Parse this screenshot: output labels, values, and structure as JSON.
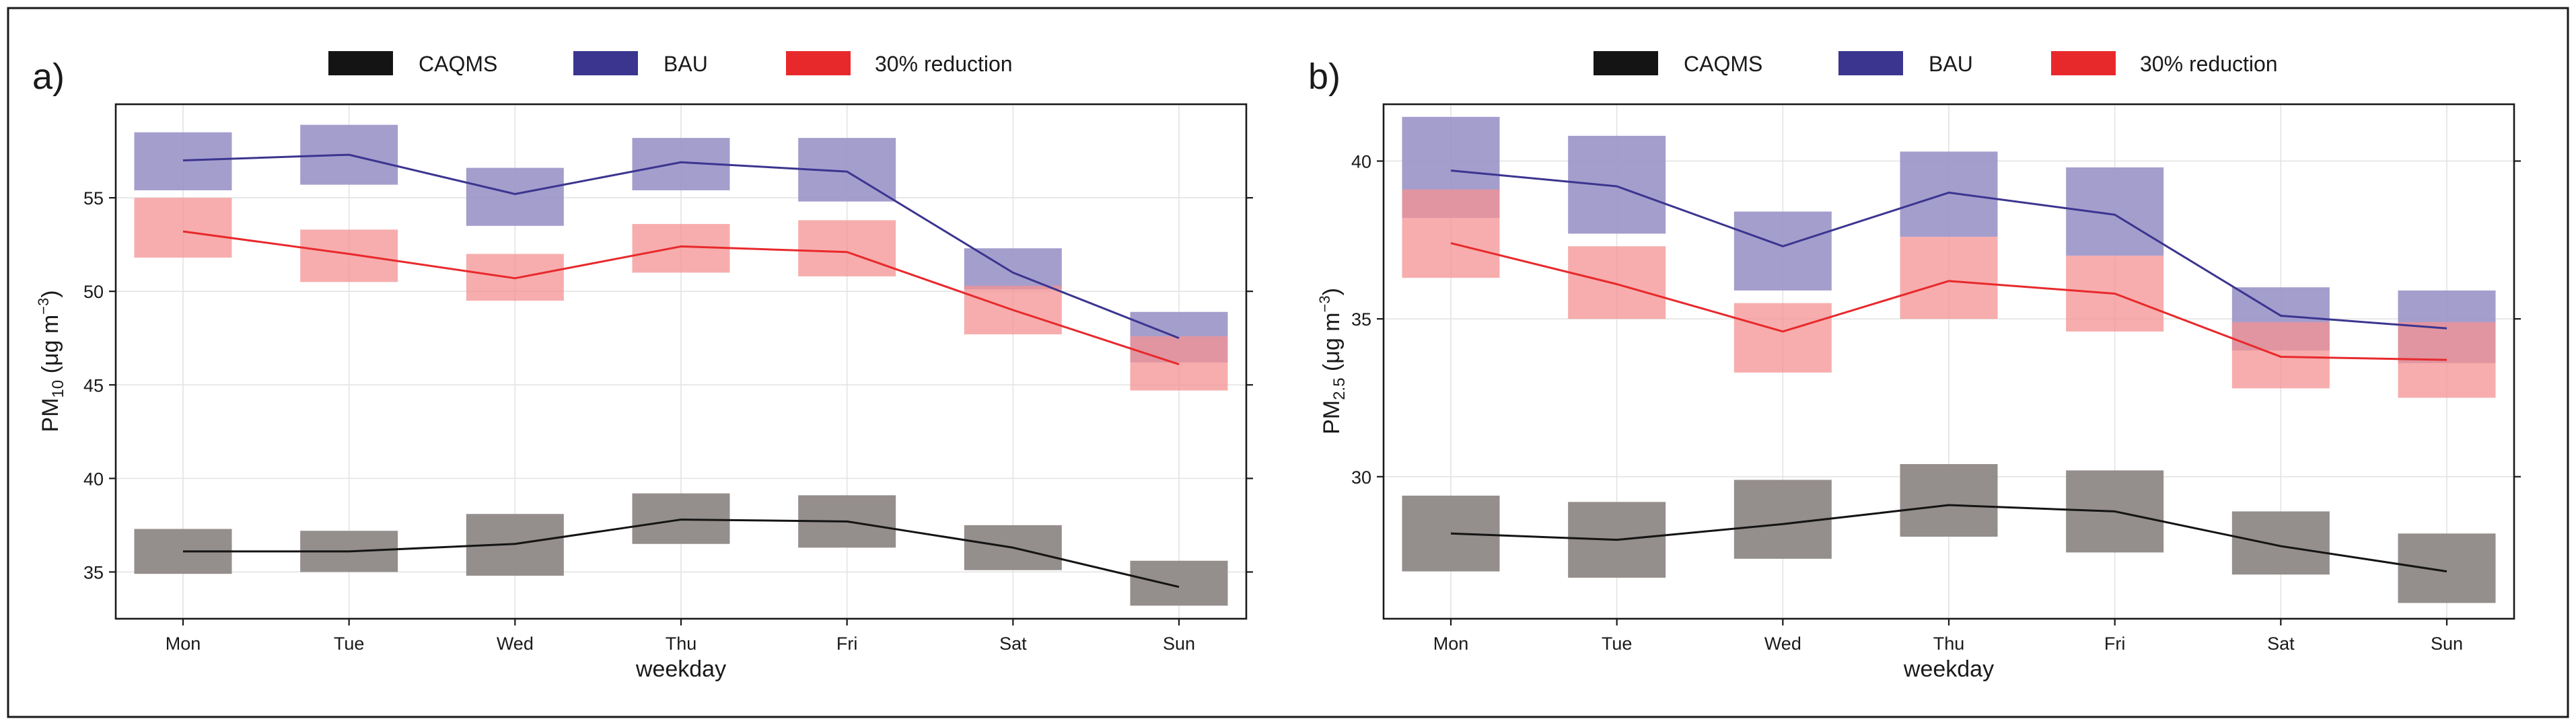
{
  "colors": {
    "CAQMS": "#141414",
    "BAU": "#3b3590",
    "30% reduction": "#e8292c",
    "CAQMS_box": "#8e8886",
    "BAU_box": "#9a93c8",
    "reduction_box": "#f49191"
  },
  "chart_data": [
    {
      "type": "line",
      "panel_label": "a)",
      "xlabel": "weekday",
      "ylabel_main": "PM",
      "ylabel_sub": "10",
      "ylabel_units_prefix": "(μg m",
      "ylabel_units_sup": "−3",
      "ylabel_units_suffix": ")",
      "ylim": [
        32.5,
        60.0
      ],
      "yticks": [
        35,
        40,
        45,
        50,
        55
      ],
      "ytick_labels": [
        "35",
        "40",
        "45",
        "50",
        "55"
      ],
      "categories": [
        "Mon",
        "Tue",
        "Wed",
        "Thu",
        "Fri",
        "Sat",
        "Sun"
      ],
      "legend": [
        "CAQMS",
        "BAU",
        "30% reduction"
      ],
      "series": [
        {
          "name": "CAQMS",
          "values": [
            36.1,
            36.1,
            36.5,
            37.8,
            37.7,
            36.3,
            34.2
          ],
          "low": [
            34.9,
            35.0,
            34.8,
            36.5,
            36.3,
            35.1,
            33.2
          ],
          "high": [
            37.3,
            37.2,
            38.1,
            39.2,
            39.1,
            37.5,
            35.6
          ]
        },
        {
          "name": "BAU",
          "values": [
            57.0,
            57.3,
            55.2,
            56.9,
            56.4,
            51.0,
            47.5
          ],
          "low": [
            55.4,
            55.7,
            53.5,
            55.4,
            54.8,
            50.1,
            46.2
          ],
          "high": [
            58.5,
            58.9,
            56.6,
            58.2,
            58.2,
            52.3,
            48.9
          ]
        },
        {
          "name": "30% reduction",
          "values": [
            53.2,
            52.0,
            50.7,
            52.4,
            52.1,
            49.0,
            46.1
          ],
          "low": [
            51.8,
            50.5,
            49.5,
            51.0,
            50.8,
            47.7,
            44.7
          ],
          "high": [
            55.0,
            53.3,
            52.0,
            53.6,
            53.8,
            50.3,
            47.6
          ]
        }
      ]
    },
    {
      "type": "line",
      "panel_label": "b)",
      "xlabel": "weekday",
      "ylabel_main": "PM",
      "ylabel_sub": "2.5",
      "ylabel_units_prefix": "(μg m",
      "ylabel_units_sup": "−3",
      "ylabel_units_suffix": ")",
      "ylim": [
        25.5,
        41.8
      ],
      "yticks": [
        30,
        35,
        40
      ],
      "ytick_labels": [
        "30",
        "35",
        "40"
      ],
      "categories": [
        "Mon",
        "Tue",
        "Wed",
        "Thu",
        "Fri",
        "Sat",
        "Sun"
      ],
      "legend": [
        "CAQMS",
        "BAU",
        "30% reduction"
      ],
      "series": [
        {
          "name": "CAQMS",
          "values": [
            28.2,
            28.0,
            28.5,
            29.1,
            28.9,
            27.8,
            27.0
          ],
          "low": [
            27.0,
            26.8,
            27.4,
            28.1,
            27.6,
            26.9,
            26.0
          ],
          "high": [
            29.4,
            29.2,
            29.9,
            30.4,
            30.2,
            28.9,
            28.2
          ]
        },
        {
          "name": "BAU",
          "values": [
            39.7,
            39.2,
            37.3,
            39.0,
            38.3,
            35.1,
            34.7
          ],
          "low": [
            38.2,
            37.7,
            35.9,
            37.6,
            37.0,
            34.0,
            33.6
          ],
          "high": [
            41.4,
            40.8,
            38.4,
            40.3,
            39.8,
            36.0,
            35.9
          ]
        },
        {
          "name": "30% reduction",
          "values": [
            37.4,
            36.1,
            34.6,
            36.2,
            35.8,
            33.8,
            33.7
          ],
          "low": [
            36.3,
            35.0,
            33.3,
            35.0,
            34.6,
            32.8,
            32.5
          ],
          "high": [
            39.1,
            37.3,
            35.5,
            37.6,
            37.0,
            34.9,
            34.9
          ]
        }
      ]
    }
  ]
}
